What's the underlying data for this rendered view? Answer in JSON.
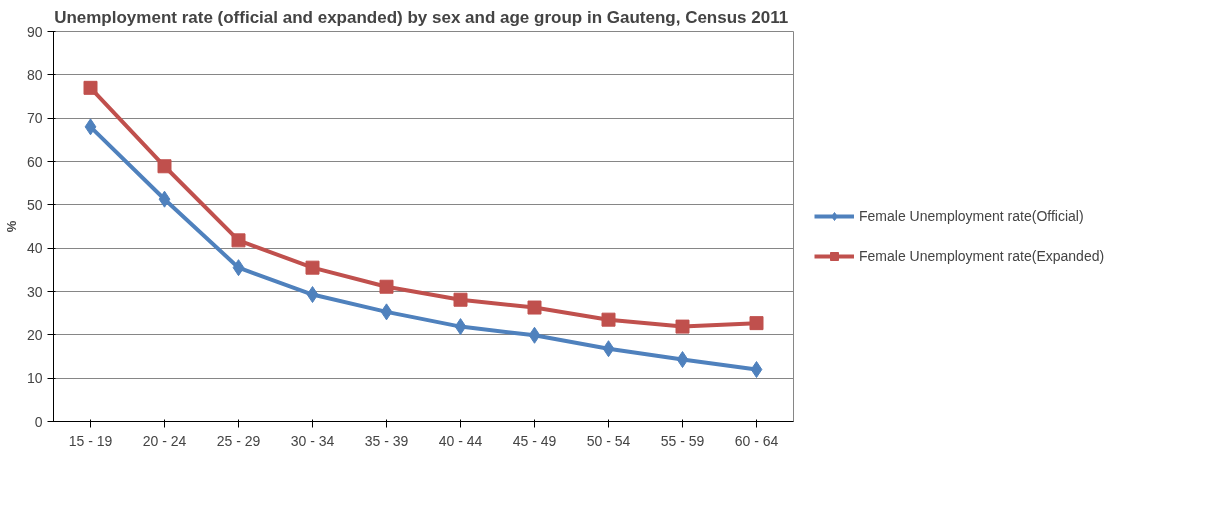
{
  "chart_data": {
    "type": "line",
    "title": "Unemployment rate (official and expanded) by  sex and age group in Gauteng, Census 2011",
    "ylabel": "%",
    "categories": [
      "15 - 19",
      "20 - 24",
      "25 - 29",
      "30 - 34",
      "35 - 39",
      "40 - 44",
      "45 - 49",
      "50 - 54",
      "55 - 59",
      "60 - 64"
    ],
    "series": [
      {
        "name": "Female Unemployment rate(Official)",
        "color": "#4f81bd",
        "marker": "diamond",
        "values": [
          68,
          51.3,
          35.5,
          29.3,
          25.3,
          21.9,
          19.9,
          16.8,
          14.3,
          12
        ]
      },
      {
        "name": "Female Unemployment rate(Expanded)",
        "color": "#c0504d",
        "marker": "square",
        "values": [
          77,
          58.9,
          41.8,
          35.5,
          31.1,
          28.1,
          26.3,
          23.5,
          21.9,
          22.7
        ]
      }
    ],
    "ylim": [
      0,
      90
    ],
    "yticks": [
      0,
      10,
      20,
      30,
      40,
      50,
      60,
      70,
      80,
      90
    ],
    "grid": "y",
    "legend": "right",
    "line_style": "solid"
  }
}
